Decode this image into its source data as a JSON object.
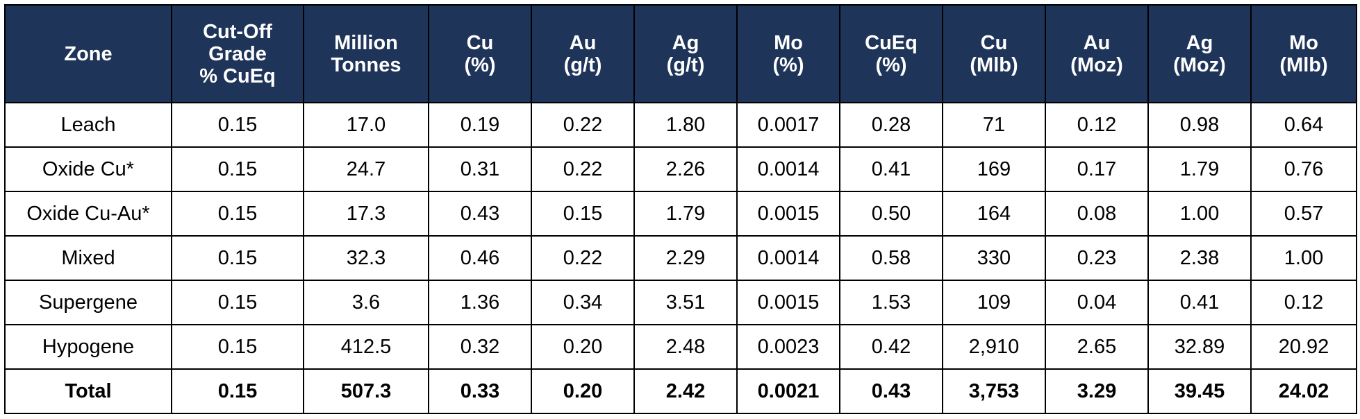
{
  "table": {
    "columns": [
      [
        "Zone"
      ],
      [
        "Cut-Off",
        "Grade",
        "% CuEq"
      ],
      [
        "Million",
        "Tonnes"
      ],
      [
        "Cu",
        "(%)"
      ],
      [
        "Au",
        "(g/t)"
      ],
      [
        "Ag",
        "(g/t)"
      ],
      [
        "Mo",
        "(%)"
      ],
      [
        "CuEq",
        "(%)"
      ],
      [
        "Cu",
        "(Mlb)"
      ],
      [
        "Au",
        "(Moz)"
      ],
      [
        "Ag",
        "(Moz)"
      ],
      [
        "Mo",
        "(Mlb)"
      ]
    ],
    "rows": [
      [
        "Leach",
        "0.15",
        "17.0",
        "0.19",
        "0.22",
        "1.80",
        "0.0017",
        "0.28",
        "71",
        "0.12",
        "0.98",
        "0.64"
      ],
      [
        "Oxide Cu*",
        "0.15",
        "24.7",
        "0.31",
        "0.22",
        "2.26",
        "0.0014",
        "0.41",
        "169",
        "0.17",
        "1.79",
        "0.76"
      ],
      [
        "Oxide Cu-Au*",
        "0.15",
        "17.3",
        "0.43",
        "0.15",
        "1.79",
        "0.0015",
        "0.50",
        "164",
        "0.08",
        "1.00",
        "0.57"
      ],
      [
        "Mixed",
        "0.15",
        "32.3",
        "0.46",
        "0.22",
        "2.29",
        "0.0014",
        "0.58",
        "330",
        "0.23",
        "2.38",
        "1.00"
      ],
      [
        "Supergene",
        "0.15",
        "3.6",
        "1.36",
        "0.34",
        "3.51",
        "0.0015",
        "1.53",
        "109",
        "0.04",
        "0.41",
        "0.12"
      ],
      [
        "Hypogene",
        "0.15",
        "412.5",
        "0.32",
        "0.20",
        "2.48",
        "0.0023",
        "0.42",
        "2,910",
        "2.65",
        "32.89",
        "20.92"
      ]
    ],
    "total": [
      "Total",
      "0.15",
      "507.3",
      "0.33",
      "0.20",
      "2.42",
      "0.0021",
      "0.43",
      "3,753",
      "3.29",
      "39.45",
      "24.02"
    ]
  },
  "colors": {
    "header_bg": "#1f3459",
    "header_text": "#ffffff",
    "border": "#000000"
  }
}
